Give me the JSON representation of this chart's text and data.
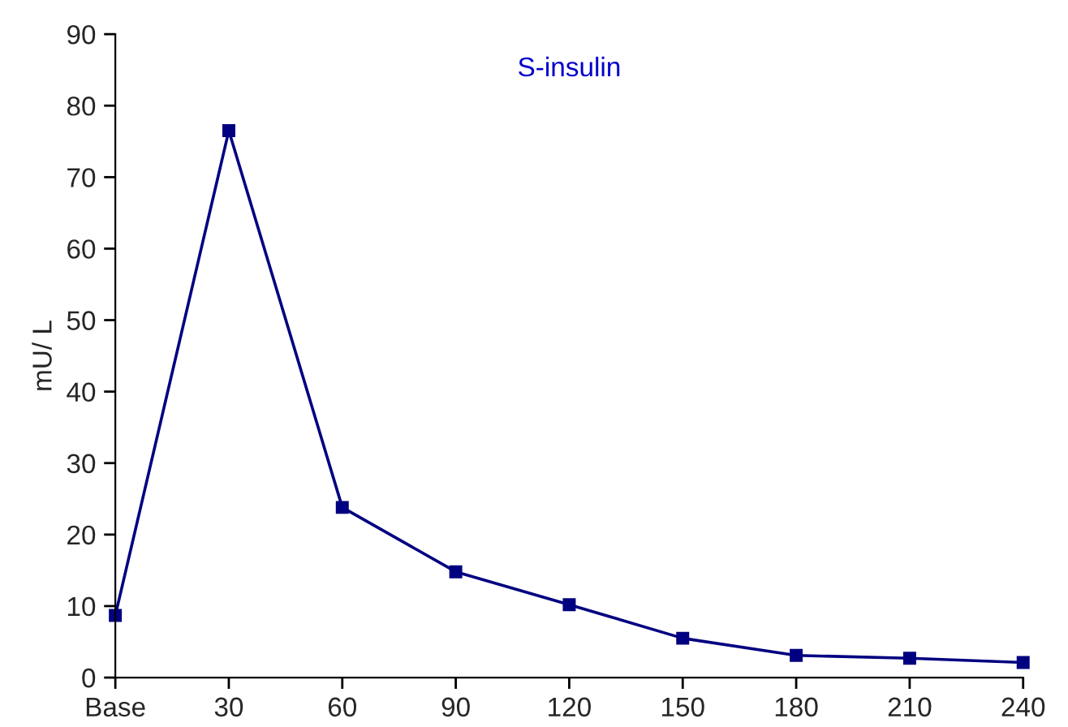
{
  "chart_data": {
    "type": "line",
    "title": "S-insulin",
    "ylabel": "mU/ L",
    "categories": [
      "Base",
      "30",
      "60",
      "90",
      "120",
      "150",
      "180",
      "210",
      "240"
    ],
    "series": [
      {
        "color": "#000080",
        "values": [
          8.7,
          76.5,
          23.8,
          14.8,
          10.2,
          5.5,
          3.1,
          2.7,
          2.1
        ]
      }
    ],
    "ylim": [
      0,
      90
    ],
    "yticks": [
      0,
      10,
      20,
      30,
      40,
      50,
      60,
      70,
      80,
      90
    ],
    "grid": false,
    "marker": "square",
    "line_style": "solid"
  }
}
